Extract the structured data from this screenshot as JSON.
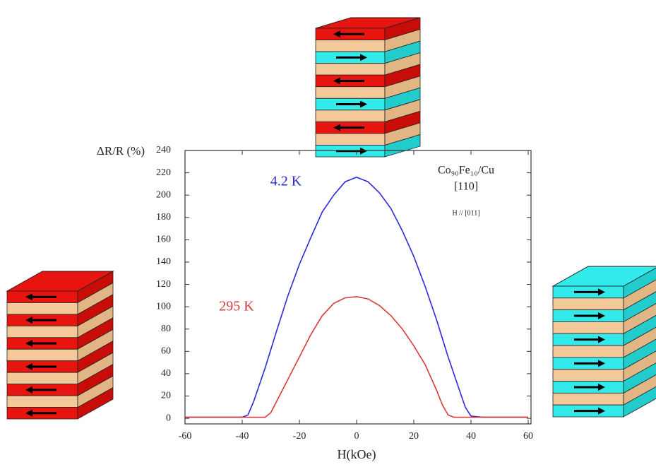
{
  "chart_data": {
    "type": "line",
    "xlabel": "H(kOe)",
    "ylabel": "ΔR/R (%)",
    "annotations": [
      "Co₉₀Fe₁₀/Cu",
      "[110]",
      "H // [011]"
    ],
    "xlim": [
      -60,
      60
    ],
    "xticks": [
      -60,
      -40,
      -20,
      0,
      20,
      40,
      60
    ],
    "ylim": [
      -5,
      240
    ],
    "yticks": [
      0,
      20,
      40,
      60,
      80,
      100,
      120,
      140,
      160,
      180,
      200,
      220,
      240
    ],
    "series": [
      {
        "name": "4.2 K",
        "color": "#2a2ad8",
        "x": [
          -60,
          -40,
          -38,
          -36,
          -32,
          -28,
          -24,
          -20,
          -16,
          -12,
          -8,
          -4,
          0,
          4,
          8,
          12,
          16,
          20,
          24,
          28,
          32,
          36,
          38,
          40,
          44,
          60
        ],
        "values": [
          1,
          1,
          3,
          15,
          45,
          78,
          110,
          138,
          162,
          185,
          200,
          212,
          216,
          212,
          202,
          188,
          168,
          145,
          118,
          88,
          55,
          25,
          10,
          2,
          1,
          1
        ]
      },
      {
        "name": "295 K",
        "color": "#d83a3a",
        "x": [
          -60,
          -32,
          -30,
          -28,
          -24,
          -20,
          -16,
          -12,
          -8,
          -4,
          0,
          4,
          8,
          12,
          16,
          20,
          24,
          28,
          30,
          32,
          34,
          60
        ],
        "values": [
          1,
          1,
          5,
          15,
          35,
          55,
          75,
          92,
          103,
          108,
          109,
          107,
          101,
          92,
          80,
          65,
          48,
          25,
          12,
          3,
          1,
          1
        ]
      }
    ]
  }
}
